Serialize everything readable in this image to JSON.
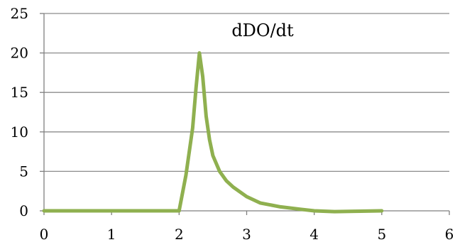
{
  "chart_data": {
    "type": "line",
    "title": "dDO/dt",
    "xlabel": "",
    "ylabel": "",
    "xlim": [
      0,
      6
    ],
    "ylim": [
      0,
      25
    ],
    "x_ticks": [
      "0",
      "1",
      "2",
      "3",
      "4",
      "5",
      "6"
    ],
    "y_ticks": [
      "0",
      "5",
      "10",
      "15",
      "20",
      "25"
    ],
    "grid": "horizontal",
    "legend": "none",
    "colors": {
      "series": "#8fb04f",
      "grid": "#8c8c8c",
      "axis": "#7f7f7f"
    },
    "series": [
      {
        "x": [
          0,
          0.5,
          1.0,
          1.5,
          1.9,
          2.0,
          2.1,
          2.2,
          2.25,
          2.3,
          2.35,
          2.4,
          2.45,
          2.5,
          2.6,
          2.7,
          2.8,
          3.0,
          3.2,
          3.5,
          3.8,
          4.0,
          4.3,
          4.6,
          5.0
        ],
        "values": [
          0,
          0,
          0,
          0,
          0,
          0,
          4.5,
          10.5,
          15.5,
          20,
          17,
          12,
          9,
          7,
          5,
          3.8,
          3,
          1.8,
          1,
          0.5,
          0.2,
          0,
          -0.1,
          -0.05,
          0
        ]
      }
    ]
  }
}
